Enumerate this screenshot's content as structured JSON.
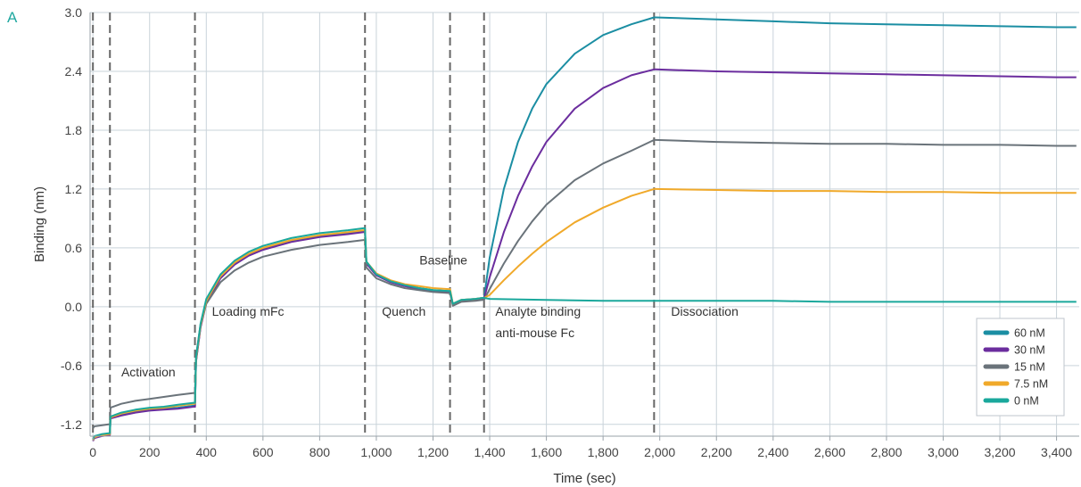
{
  "panel_label": "A",
  "colors": {
    "panel": "#20a8a0",
    "grid": "#c9d3da",
    "axis": "#9aa3aa",
    "divider": "#666666"
  },
  "chart_data": {
    "type": "line",
    "xlabel": "Time (sec)",
    "ylabel": "Binding (nm)",
    "xlim": [
      -10,
      3480
    ],
    "ylim": [
      -1.32,
      3.0
    ],
    "x_ticks": [
      0,
      200,
      400,
      600,
      800,
      1000,
      1200,
      1400,
      1600,
      1800,
      2000,
      2200,
      2400,
      2600,
      2800,
      3000,
      3200,
      3400
    ],
    "x_tick_labels": [
      "0",
      "200",
      "400",
      "600",
      "800",
      "1,000",
      "1,200",
      "1,400",
      "1,600",
      "1,800",
      "2,000",
      "2,200",
      "2,400",
      "2,600",
      "2,800",
      "3,000",
      "3,200",
      "3,400"
    ],
    "y_ticks": [
      -1.2,
      -0.6,
      0.0,
      0.6,
      1.2,
      1.8,
      2.4,
      3.0
    ],
    "y_tick_labels": [
      "-1.2",
      "-0.6",
      "0.0",
      "0.6",
      "1.2",
      "1.8",
      "2.4",
      "3.0"
    ],
    "grid": true,
    "legend_position": "bottom-right",
    "step_boundaries": [
      0,
      60,
      360,
      960,
      1260,
      1380,
      1980
    ],
    "annotations": [
      {
        "id": "activation",
        "text": "Activation",
        "x": 100,
        "y": -0.71
      },
      {
        "id": "loading",
        "text": "Loading mFc",
        "x": 420,
        "y": -0.09
      },
      {
        "id": "quench",
        "text": "Quench",
        "x": 1020,
        "y": -0.09
      },
      {
        "id": "baseline",
        "text": "Baseline",
        "x": 1152,
        "y": 0.43
      },
      {
        "id": "analyte1",
        "text": "Analyte binding",
        "x": 1420,
        "y": -0.09
      },
      {
        "id": "analyte2",
        "text": "anti-mouse Fc",
        "x": 1420,
        "y": -0.31
      },
      {
        "id": "dissociation",
        "text": "Dissociation",
        "x": 2040,
        "y": -0.09
      }
    ],
    "series": [
      {
        "name": "60 nM",
        "color": "#1b8ea3",
        "x": [
          0,
          5,
          30,
          55,
          60,
          62,
          100,
          150,
          200,
          250,
          300,
          355,
          360,
          364,
          380,
          400,
          450,
          500,
          550,
          600,
          700,
          800,
          900,
          955,
          960,
          965,
          1000,
          1050,
          1100,
          1150,
          1200,
          1255,
          1260,
          1270,
          1300,
          1350,
          1375,
          1380,
          1400,
          1450,
          1500,
          1550,
          1600,
          1700,
          1800,
          1900,
          1980,
          1985,
          2200,
          2400,
          2600,
          2800,
          3000,
          3200,
          3400,
          3470
        ],
        "y": [
          -1.36,
          -1.33,
          -1.31,
          -1.3,
          -1.3,
          -1.13,
          -1.1,
          -1.07,
          -1.05,
          -1.04,
          -1.03,
          -1.01,
          -1.01,
          -0.55,
          -0.2,
          0.05,
          0.3,
          0.44,
          0.53,
          0.59,
          0.67,
          0.72,
          0.75,
          0.77,
          0.77,
          0.45,
          0.33,
          0.26,
          0.22,
          0.19,
          0.17,
          0.16,
          0.16,
          0.03,
          0.07,
          0.08,
          0.09,
          0.09,
          0.5,
          1.2,
          1.68,
          2.02,
          2.27,
          2.58,
          2.77,
          2.88,
          2.95,
          2.95,
          2.93,
          2.91,
          2.89,
          2.88,
          2.87,
          2.86,
          2.85,
          2.85
        ]
      },
      {
        "name": "30 nM",
        "color": "#6b2d9e",
        "x": [
          0,
          5,
          30,
          55,
          60,
          62,
          100,
          150,
          200,
          250,
          300,
          355,
          360,
          364,
          380,
          400,
          450,
          500,
          550,
          600,
          700,
          800,
          900,
          955,
          960,
          965,
          1000,
          1050,
          1100,
          1150,
          1200,
          1255,
          1260,
          1270,
          1300,
          1350,
          1375,
          1380,
          1400,
          1450,
          1500,
          1550,
          1600,
          1700,
          1800,
          1900,
          1980,
          1985,
          2200,
          2400,
          2600,
          2800,
          3000,
          3200,
          3400,
          3470
        ],
        "y": [
          -1.37,
          -1.34,
          -1.32,
          -1.31,
          -1.31,
          -1.14,
          -1.11,
          -1.08,
          -1.06,
          -1.05,
          -1.04,
          -1.02,
          -1.02,
          -0.56,
          -0.21,
          0.04,
          0.29,
          0.43,
          0.52,
          0.58,
          0.66,
          0.71,
          0.74,
          0.76,
          0.76,
          0.44,
          0.32,
          0.25,
          0.21,
          0.18,
          0.16,
          0.15,
          0.15,
          0.02,
          0.06,
          0.07,
          0.08,
          0.08,
          0.3,
          0.76,
          1.13,
          1.43,
          1.68,
          2.02,
          2.23,
          2.36,
          2.42,
          2.42,
          2.4,
          2.39,
          2.38,
          2.37,
          2.36,
          2.35,
          2.34,
          2.34
        ]
      },
      {
        "name": "15 nM",
        "color": "#6a737a",
        "x": [
          0,
          5,
          30,
          55,
          60,
          62,
          100,
          150,
          200,
          250,
          300,
          355,
          360,
          364,
          380,
          400,
          450,
          500,
          550,
          600,
          700,
          800,
          900,
          955,
          960,
          965,
          1000,
          1050,
          1100,
          1150,
          1200,
          1255,
          1260,
          1270,
          1300,
          1350,
          1375,
          1380,
          1400,
          1450,
          1500,
          1550,
          1600,
          1700,
          1800,
          1900,
          1980,
          1985,
          2200,
          2400,
          2600,
          2800,
          3000,
          3200,
          3400,
          3470
        ],
        "y": [
          -1.24,
          -1.22,
          -1.21,
          -1.2,
          -1.2,
          -1.03,
          -0.99,
          -0.96,
          -0.94,
          -0.92,
          -0.9,
          -0.88,
          -0.88,
          -0.5,
          -0.18,
          0.03,
          0.25,
          0.37,
          0.45,
          0.51,
          0.58,
          0.63,
          0.66,
          0.68,
          0.68,
          0.4,
          0.29,
          0.23,
          0.19,
          0.17,
          0.15,
          0.14,
          0.14,
          0.01,
          0.05,
          0.06,
          0.07,
          0.07,
          0.18,
          0.44,
          0.67,
          0.87,
          1.04,
          1.29,
          1.46,
          1.59,
          1.7,
          1.7,
          1.68,
          1.67,
          1.66,
          1.66,
          1.65,
          1.65,
          1.64,
          1.64
        ]
      },
      {
        "name": "7.5 nM",
        "color": "#f0a92a",
        "x": [
          0,
          5,
          30,
          55,
          60,
          62,
          100,
          150,
          200,
          250,
          300,
          355,
          360,
          364,
          380,
          400,
          450,
          500,
          550,
          600,
          700,
          800,
          900,
          955,
          960,
          965,
          1000,
          1050,
          1100,
          1150,
          1200,
          1255,
          1260,
          1270,
          1300,
          1350,
          1375,
          1380,
          1400,
          1450,
          1500,
          1550,
          1600,
          1700,
          1800,
          1900,
          1980,
          1985,
          2200,
          2400,
          2600,
          2800,
          3000,
          3200,
          3400,
          3470
        ],
        "y": [
          -1.36,
          -1.33,
          -1.31,
          -1.3,
          -1.3,
          -1.13,
          -1.09,
          -1.06,
          -1.04,
          -1.03,
          -1.01,
          -0.99,
          -0.99,
          -0.54,
          -0.19,
          0.06,
          0.31,
          0.45,
          0.54,
          0.6,
          0.68,
          0.73,
          0.76,
          0.78,
          0.78,
          0.46,
          0.34,
          0.27,
          0.23,
          0.21,
          0.19,
          0.18,
          0.18,
          0.03,
          0.07,
          0.08,
          0.09,
          0.09,
          0.12,
          0.27,
          0.41,
          0.54,
          0.66,
          0.86,
          1.01,
          1.13,
          1.2,
          1.2,
          1.19,
          1.18,
          1.18,
          1.17,
          1.17,
          1.16,
          1.16,
          1.16
        ]
      },
      {
        "name": "0 nM",
        "color": "#1aa89c",
        "x": [
          0,
          5,
          30,
          55,
          60,
          62,
          100,
          150,
          200,
          250,
          300,
          355,
          360,
          364,
          380,
          400,
          450,
          500,
          550,
          600,
          700,
          800,
          900,
          955,
          960,
          965,
          1000,
          1050,
          1100,
          1150,
          1200,
          1255,
          1260,
          1270,
          1300,
          1350,
          1375,
          1380,
          1400,
          1600,
          1800,
          1980,
          2200,
          2400,
          2600,
          2800,
          3000,
          3200,
          3400,
          3470
        ],
        "y": [
          -1.35,
          -1.32,
          -1.3,
          -1.29,
          -1.29,
          -1.12,
          -1.08,
          -1.05,
          -1.03,
          -1.02,
          -1.0,
          -0.98,
          -0.98,
          -0.52,
          -0.17,
          0.08,
          0.33,
          0.47,
          0.56,
          0.62,
          0.7,
          0.75,
          0.78,
          0.8,
          0.8,
          0.46,
          0.33,
          0.26,
          0.22,
          0.19,
          0.17,
          0.16,
          0.16,
          0.03,
          0.07,
          0.08,
          0.09,
          0.09,
          0.08,
          0.07,
          0.06,
          0.06,
          0.06,
          0.06,
          0.05,
          0.05,
          0.05,
          0.05,
          0.05,
          0.05
        ]
      }
    ]
  }
}
